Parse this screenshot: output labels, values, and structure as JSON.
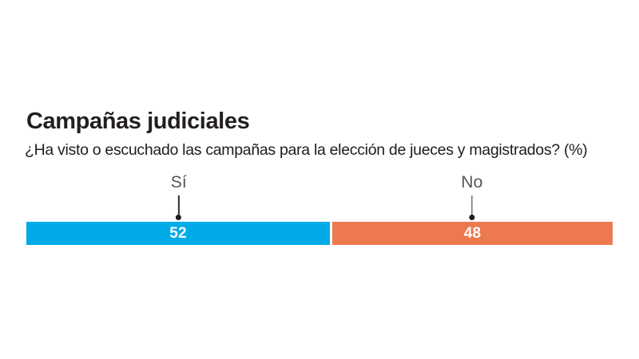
{
  "chart": {
    "title": "Campañas judiciales",
    "subtitle": "¿Ha visto o escuchado las campañas para la elección de jueces y magistrados? (%)"
  },
  "chart_data": {
    "type": "bar",
    "subtype": "horizontal-100pct-stacked",
    "title": "Campañas judiciales",
    "subtitle": "¿Ha visto o escuchado las campañas para la elección de jueces y magistrados? (%)",
    "categories": [
      "Sí",
      "No"
    ],
    "values": [
      52,
      48
    ],
    "unit": "%",
    "total": 100,
    "colors": [
      "#00abe8",
      "#ed7950"
    ],
    "value_label_color": "#ffffff",
    "category_label_color": "#54565a",
    "leader_marker_color": "#1d1d1b",
    "background": "#ffffff",
    "legend": "none",
    "axes": "none",
    "annotation_style": "category label above bar with vertical leader line ending in dot"
  }
}
